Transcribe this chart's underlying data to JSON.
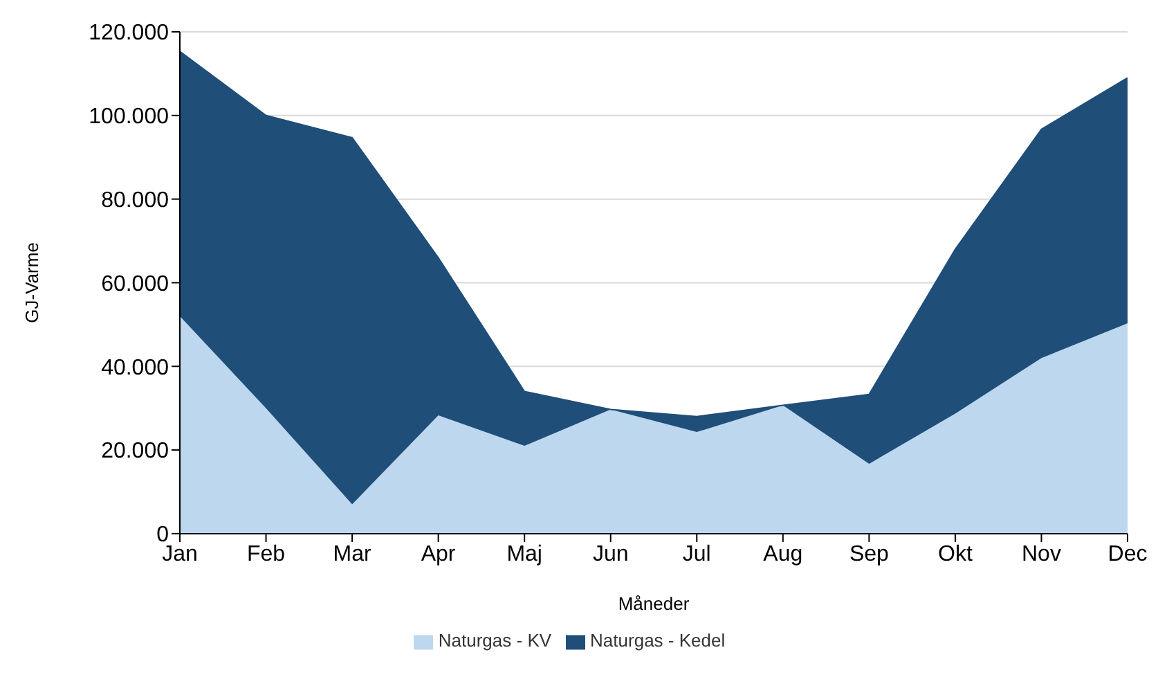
{
  "chart_data": {
    "type": "area",
    "stacked": true,
    "xlabel": "Måneder",
    "ylabel": "GJ-Varme",
    "categories": [
      "Jan",
      "Feb",
      "Mar",
      "Apr",
      "Maj",
      "Jun",
      "Jul",
      "Aug",
      "Sep",
      "Okt",
      "Nov",
      "Dec"
    ],
    "series": [
      {
        "name": "Naturgas - KV",
        "color": "#bdd7ee",
        "values": [
          52000,
          30000,
          7000,
          28300,
          21000,
          29700,
          24300,
          30700,
          16700,
          28700,
          42000,
          50300
        ]
      },
      {
        "name": "Naturgas - Kedel",
        "color": "#1f4e79",
        "values": [
          63300,
          70000,
          87700,
          37700,
          13000,
          0,
          3700,
          0,
          16600,
          39300,
          54700,
          58700
        ]
      }
    ],
    "ylim": [
      0,
      120000
    ],
    "yticks": [
      {
        "value": 0,
        "label": "0"
      },
      {
        "value": 20000,
        "label": "20.000"
      },
      {
        "value": 40000,
        "label": "40.000"
      },
      {
        "value": 60000,
        "label": "60.000"
      },
      {
        "value": 80000,
        "label": "80.000"
      },
      {
        "value": 100000,
        "label": "100.000"
      },
      {
        "value": 120000,
        "label": "120.000"
      }
    ],
    "grid": "y",
    "legend": "bottom"
  }
}
